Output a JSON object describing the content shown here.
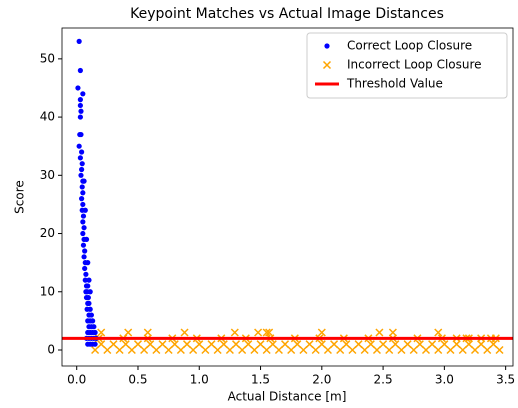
{
  "chart_data": {
    "type": "scatter",
    "title": "Keypoint Matches vs Actual Image Distances",
    "x_label": "Actual Distance [m]",
    "y_label": "Score",
    "xlim": [
      -0.12,
      3.56
    ],
    "ylim": [
      -2.75,
      55.3
    ],
    "xticks": [
      {
        "value": 0,
        "label": "0.0"
      },
      {
        "value": 0.5,
        "label": "0.5"
      },
      {
        "value": 1,
        "label": "1.0"
      },
      {
        "value": 1.5,
        "label": "1.5"
      },
      {
        "value": 2,
        "label": "2.0"
      },
      {
        "value": 2.5,
        "label": "2.5"
      },
      {
        "value": 3,
        "label": "3.0"
      },
      {
        "value": 3.5,
        "label": "3.5"
      }
    ],
    "yticks": [
      0,
      10,
      20,
      30,
      40,
      50
    ],
    "grid": false,
    "legend": "upper right",
    "series": [
      {
        "name": "Correct Loop Closure",
        "color": "#0000ff",
        "marker": "dot",
        "x": [
          0.02,
          0.03,
          0.01,
          0.03,
          0.03,
          0.035,
          0.03,
          0.025,
          0.035,
          0.02,
          0.04,
          0.03,
          0.045,
          0.04,
          0.035,
          0.05,
          0.045,
          0.05,
          0.04,
          0.05,
          0.045,
          0.055,
          0.05,
          0.06,
          0.05,
          0.06,
          0.055,
          0.065,
          0.06,
          0.07,
          0.065,
          0.075,
          0.07,
          0.08,
          0.09,
          0.075,
          0.085,
          0.095,
          0.08,
          0.1,
          0.09,
          0.11,
          0.085,
          0.1,
          0.12,
          0.09,
          0.11,
          0.13,
          0.1,
          0.12,
          0.14,
          0.09,
          0.11,
          0.13,
          0.15,
          0.08,
          0.1,
          0.12,
          0.14,
          0.16,
          0.09,
          0.11,
          0.13,
          0.15,
          0.05,
          0.06,
          0.07,
          0.08,
          0.09,
          0.1,
          0.11
        ],
        "values": [
          53,
          48,
          45,
          43,
          42,
          41,
          40,
          37,
          37,
          35,
          34,
          33,
          32,
          31,
          30,
          29,
          28,
          27,
          26,
          25,
          24,
          23,
          22,
          21,
          20,
          19,
          18,
          17,
          16,
          15,
          14,
          13,
          12,
          11,
          11,
          10,
          10,
          9,
          9,
          8,
          8,
          7,
          7,
          6,
          6,
          5,
          5,
          5,
          4,
          4,
          4,
          3,
          3,
          3,
          3,
          2,
          2,
          2,
          2,
          2,
          1,
          1,
          1,
          1,
          44,
          29,
          24,
          19,
          15,
          12,
          10
        ]
      },
      {
        "name": "Incorrect Loop Closure",
        "color": "#ffa500",
        "marker": "x",
        "x": [
          0.15,
          0.25,
          0.35,
          0.45,
          0.55,
          0.65,
          0.75,
          0.85,
          0.95,
          1.05,
          1.15,
          1.25,
          1.35,
          1.45,
          1.55,
          1.65,
          1.75,
          1.85,
          1.95,
          2.05,
          2.15,
          2.25,
          2.35,
          2.45,
          2.55,
          2.65,
          2.75,
          2.85,
          2.95,
          3.05,
          3.15,
          3.25,
          3.35,
          3.45,
          0.2,
          0.3,
          0.4,
          0.5,
          0.6,
          0.7,
          0.8,
          0.9,
          1.0,
          1.1,
          1.2,
          1.3,
          1.4,
          1.5,
          1.6,
          1.7,
          1.8,
          1.9,
          2.0,
          2.1,
          2.2,
          2.3,
          2.4,
          2.5,
          2.6,
          2.7,
          2.8,
          2.9,
          3.0,
          3.1,
          3.2,
          3.3,
          3.4,
          0.18,
          0.38,
          0.58,
          0.78,
          0.98,
          1.18,
          1.38,
          1.58,
          1.78,
          1.98,
          2.18,
          2.38,
          2.58,
          2.78,
          2.98,
          3.18,
          3.38,
          3.1,
          3.2,
          3.3,
          3.42,
          0.2,
          0.42,
          0.58,
          0.88,
          1.29,
          1.48,
          1.55,
          1.57,
          2.0,
          2.47,
          2.58,
          2.95
        ],
        "values": [
          0,
          0,
          0,
          0,
          0,
          0,
          0,
          0,
          0,
          0,
          0,
          0,
          0,
          0,
          0,
          0,
          0,
          0,
          0,
          0,
          0,
          0,
          0,
          0,
          0,
          0,
          0,
          0,
          0,
          0,
          0,
          0,
          0,
          0,
          1,
          1,
          1,
          1,
          1,
          1,
          1,
          1,
          1,
          1,
          1,
          1,
          1,
          1,
          1,
          1,
          1,
          1,
          1,
          1,
          1,
          1,
          1,
          1,
          1,
          1,
          1,
          1,
          1,
          1,
          1,
          1,
          1,
          2,
          2,
          2,
          2,
          2,
          2,
          2,
          2,
          2,
          2,
          2,
          2,
          2,
          2,
          2,
          2,
          2,
          2,
          2,
          2,
          2,
          3,
          3,
          3,
          3,
          3,
          3,
          3,
          3,
          3,
          3,
          3,
          3
        ]
      }
    ],
    "threshold": {
      "name": "Threshold Value",
      "color": "#ff0000",
      "value": 2
    }
  }
}
